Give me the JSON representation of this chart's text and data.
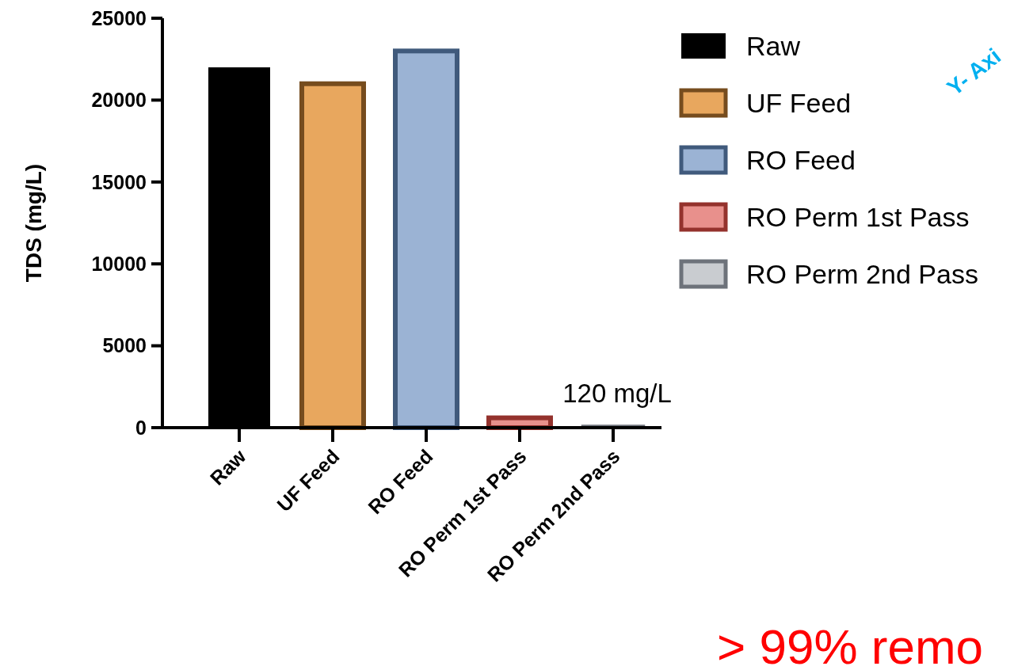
{
  "chart_data": {
    "type": "bar",
    "ylabel": "TDS (mg/L)",
    "categories": [
      "Raw",
      "UF Feed",
      "RO Feed",
      "RO Perm 1st Pass",
      "RO Perm 2nd Pass"
    ],
    "series": [
      {
        "name": "Raw",
        "color": "#000000",
        "values": [
          22000,
          null,
          null,
          null,
          null
        ]
      },
      {
        "name": "UF Feed",
        "color": "#e8a75e",
        "values": [
          null,
          21000,
          null,
          null,
          null
        ]
      },
      {
        "name": "RO Feed",
        "color": "#9bb3d4",
        "values": [
          null,
          null,
          23000,
          null,
          null
        ]
      },
      {
        "name": "RO Perm 1st Pass",
        "color": "#e8908c",
        "values": [
          null,
          null,
          null,
          600,
          null
        ]
      },
      {
        "name": "RO Perm 2nd Pass",
        "color": "#c9ccd0",
        "values": [
          null,
          null,
          null,
          null,
          120
        ],
        "value_labels": [
          null,
          null,
          null,
          null,
          "120 mg/L"
        ]
      }
    ],
    "ylim": [
      0,
      25000
    ],
    "yticks": [
      0,
      5000,
      10000,
      15000,
      20000,
      25000
    ],
    "legend": "right",
    "annotations": [
      "Y- Axi",
      "> 99% remo"
    ]
  }
}
